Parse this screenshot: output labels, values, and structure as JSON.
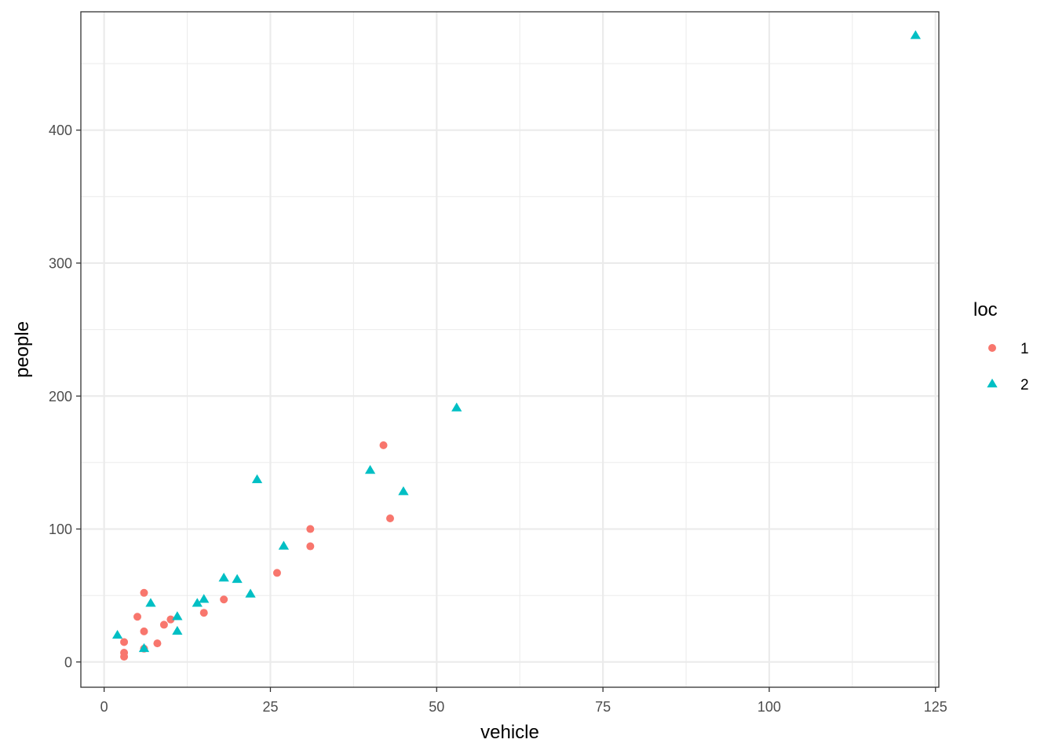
{
  "chart_data": {
    "type": "scatter",
    "xlabel": "vehicle",
    "ylabel": "people",
    "xlim": [
      -3.5,
      125.5
    ],
    "ylim": [
      -19,
      489
    ],
    "x_ticks": [
      0,
      25,
      50,
      75,
      100,
      125
    ],
    "x_minor_ticks": [
      12.5,
      37.5,
      62.5,
      87.5,
      112.5
    ],
    "y_ticks": [
      0,
      100,
      200,
      300,
      400
    ],
    "y_minor_ticks": [
      50,
      150,
      250,
      350,
      450
    ],
    "x_tick_labels": [
      "0",
      "25",
      "50",
      "75",
      "100",
      "125"
    ],
    "y_tick_labels": [
      "0",
      "100",
      "200",
      "300",
      "400"
    ],
    "grid": true,
    "legend": {
      "title": "loc",
      "position": "right",
      "entries": [
        {
          "label": "1",
          "shape": "circle",
          "color": "#F8766D"
        },
        {
          "label": "2",
          "shape": "triangle",
          "color": "#00BFC4"
        }
      ]
    },
    "series": [
      {
        "name": "1",
        "color": "#F8766D",
        "shape": "circle",
        "points": [
          {
            "x": 3,
            "y": 4
          },
          {
            "x": 3,
            "y": 7
          },
          {
            "x": 3,
            "y": 15
          },
          {
            "x": 5,
            "y": 34
          },
          {
            "x": 6,
            "y": 10
          },
          {
            "x": 6,
            "y": 23
          },
          {
            "x": 6,
            "y": 52
          },
          {
            "x": 8,
            "y": 14
          },
          {
            "x": 9,
            "y": 28
          },
          {
            "x": 10,
            "y": 32
          },
          {
            "x": 15,
            "y": 37
          },
          {
            "x": 18,
            "y": 47
          },
          {
            "x": 26,
            "y": 67
          },
          {
            "x": 31,
            "y": 87
          },
          {
            "x": 31,
            "y": 100
          },
          {
            "x": 42,
            "y": 163
          },
          {
            "x": 43,
            "y": 108
          }
        ]
      },
      {
        "name": "2",
        "color": "#00BFC4",
        "shape": "triangle",
        "points": [
          {
            "x": 2,
            "y": 20
          },
          {
            "x": 6,
            "y": 10
          },
          {
            "x": 7,
            "y": 44
          },
          {
            "x": 11,
            "y": 23
          },
          {
            "x": 11,
            "y": 34
          },
          {
            "x": 14,
            "y": 44
          },
          {
            "x": 15,
            "y": 47
          },
          {
            "x": 18,
            "y": 63
          },
          {
            "x": 20,
            "y": 62
          },
          {
            "x": 22,
            "y": 51
          },
          {
            "x": 23,
            "y": 137
          },
          {
            "x": 27,
            "y": 87
          },
          {
            "x": 40,
            "y": 144
          },
          {
            "x": 45,
            "y": 128
          },
          {
            "x": 53,
            "y": 191
          },
          {
            "x": 122,
            "y": 471
          }
        ]
      }
    ]
  }
}
